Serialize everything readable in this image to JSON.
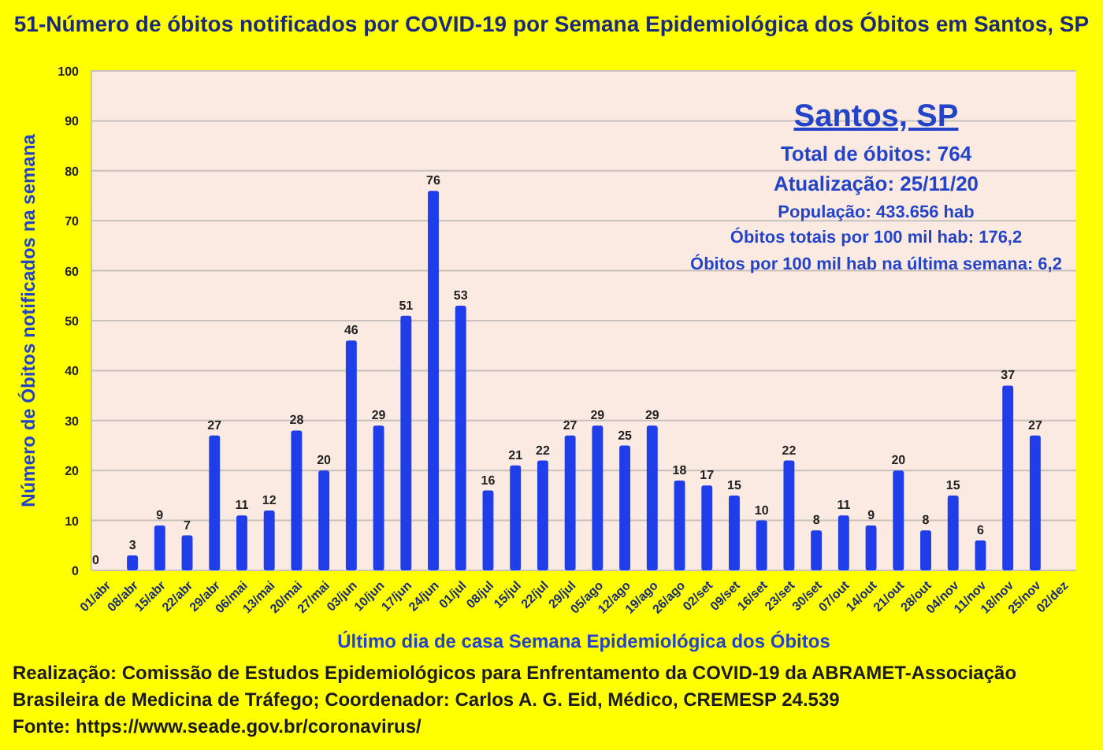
{
  "chart_data": {
    "type": "bar",
    "title": "51-Número de óbitos notificados por COVID-19 por Semana Epidemiológica dos Óbitos  em Santos, SP",
    "xlabel": "Último dia de casa Semana Epidemiológica dos Óbitos",
    "ylabel": "Número de Óbitos notificados na semana",
    "categories": [
      "01/abr",
      "08/abr",
      "15/abr",
      "22/abr",
      "29/abr",
      "06/mai",
      "13/mai",
      "20/mai",
      "27/mai",
      "03/jun",
      "10/jun",
      "17/jun",
      "24/jun",
      "01/jul",
      "08/jul",
      "15/jul",
      "22/jul",
      "29/jul",
      "05/ago",
      "12/ago",
      "19/ago",
      "26/ago",
      "02/set",
      "09/set",
      "16/set",
      "23/set",
      "30/set",
      "07/out",
      "14/out",
      "21/out",
      "28/out",
      "04/nov",
      "11/nov",
      "18/nov",
      "25/nov",
      "02/dez"
    ],
    "values": [
      0,
      3,
      9,
      7,
      27,
      11,
      12,
      28,
      20,
      46,
      29,
      51,
      76,
      53,
      16,
      21,
      22,
      27,
      29,
      25,
      29,
      18,
      17,
      15,
      10,
      22,
      8,
      11,
      9,
      20,
      8,
      15,
      6,
      37,
      27,
      null
    ],
    "color": "#1f3de8",
    "ylim": [
      0,
      100
    ],
    "yticks": [
      0,
      10,
      20,
      30,
      40,
      50,
      60,
      70,
      80,
      90,
      100
    ],
    "grid": "y",
    "data_labels": true,
    "annotations": [
      "Santos, SP",
      "Total de óbitos: 764",
      "Atualização: 25/11/20",
      "População: 433.656 hab",
      "Óbitos totais por 100 mil hab: 176,2",
      "Óbitos por 100 mil hab na última semana: 6,2",
      "Realização: Comissão de Estudos Epidemiológicos para Enfrentamento da COVID-19 da ABRAMET-Associação",
      "Brasileira de Medicina de Tráfego; Coordenador: Carlos A. G. Eid, Médico, CREMESP 24.539",
      "Fonte: https://www.seade.gov.br/coronavirus/"
    ]
  }
}
